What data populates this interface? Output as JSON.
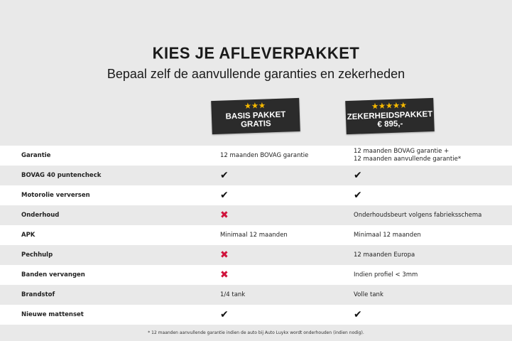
{
  "header": {
    "title": "KIES JE AFLEVERPAKKET",
    "subtitle": "Bepaal zelf de aanvullende garanties en zekerheden"
  },
  "packages": [
    {
      "stars": "★★★",
      "name": "BASIS PAKKET",
      "price": "GRATIS",
      "rating": 3
    },
    {
      "stars": "★★★★★",
      "name": "ZEKERHEIDSPAKKET",
      "price": "€ 895,-",
      "rating": 5
    }
  ],
  "rows": [
    {
      "label": "Garantie",
      "basis": {
        "type": "text",
        "value": "12 maanden BOVAG garantie"
      },
      "zekerheid": {
        "type": "text",
        "value": "12 maanden BOVAG garantie +",
        "value2": "12 maanden aanvullende garantie*"
      }
    },
    {
      "label": "BOVAG 40 puntencheck",
      "basis": {
        "type": "check",
        "value": "✔"
      },
      "zekerheid": {
        "type": "check",
        "value": "✔"
      }
    },
    {
      "label": "Motorolie verversen",
      "basis": {
        "type": "check",
        "value": "✔"
      },
      "zekerheid": {
        "type": "check",
        "value": "✔"
      }
    },
    {
      "label": "Onderhoud",
      "basis": {
        "type": "cross",
        "value": "✖"
      },
      "zekerheid": {
        "type": "text",
        "value": "Onderhoudsbeurt volgens fabrieksschema"
      }
    },
    {
      "label": "APK",
      "basis": {
        "type": "text",
        "value": "Minimaal 12 maanden"
      },
      "zekerheid": {
        "type": "text",
        "value": "Minimaal 12 maanden"
      }
    },
    {
      "label": "Pechhulp",
      "basis": {
        "type": "cross",
        "value": "✖"
      },
      "zekerheid": {
        "type": "text",
        "value": "12 maanden Europa"
      }
    },
    {
      "label": "Banden vervangen",
      "basis": {
        "type": "cross",
        "value": "✖"
      },
      "zekerheid": {
        "type": "text",
        "value": "Indien profiel < 3mm"
      }
    },
    {
      "label": "Brandstof",
      "basis": {
        "type": "text",
        "value": "1/4 tank"
      },
      "zekerheid": {
        "type": "text",
        "value": "Volle tank"
      }
    },
    {
      "label": "Nieuwe mattenset",
      "basis": {
        "type": "check",
        "value": "✔"
      },
      "zekerheid": {
        "type": "check",
        "value": "✔"
      }
    }
  ],
  "footnote": "* 12 maanden aanvullende garantie indien de auto bij Auto Luykx wordt onderhouden (indien nodig).",
  "colors": {
    "badge": "#2b2b2b",
    "star": "#f5b800",
    "cross": "#d0143c"
  }
}
